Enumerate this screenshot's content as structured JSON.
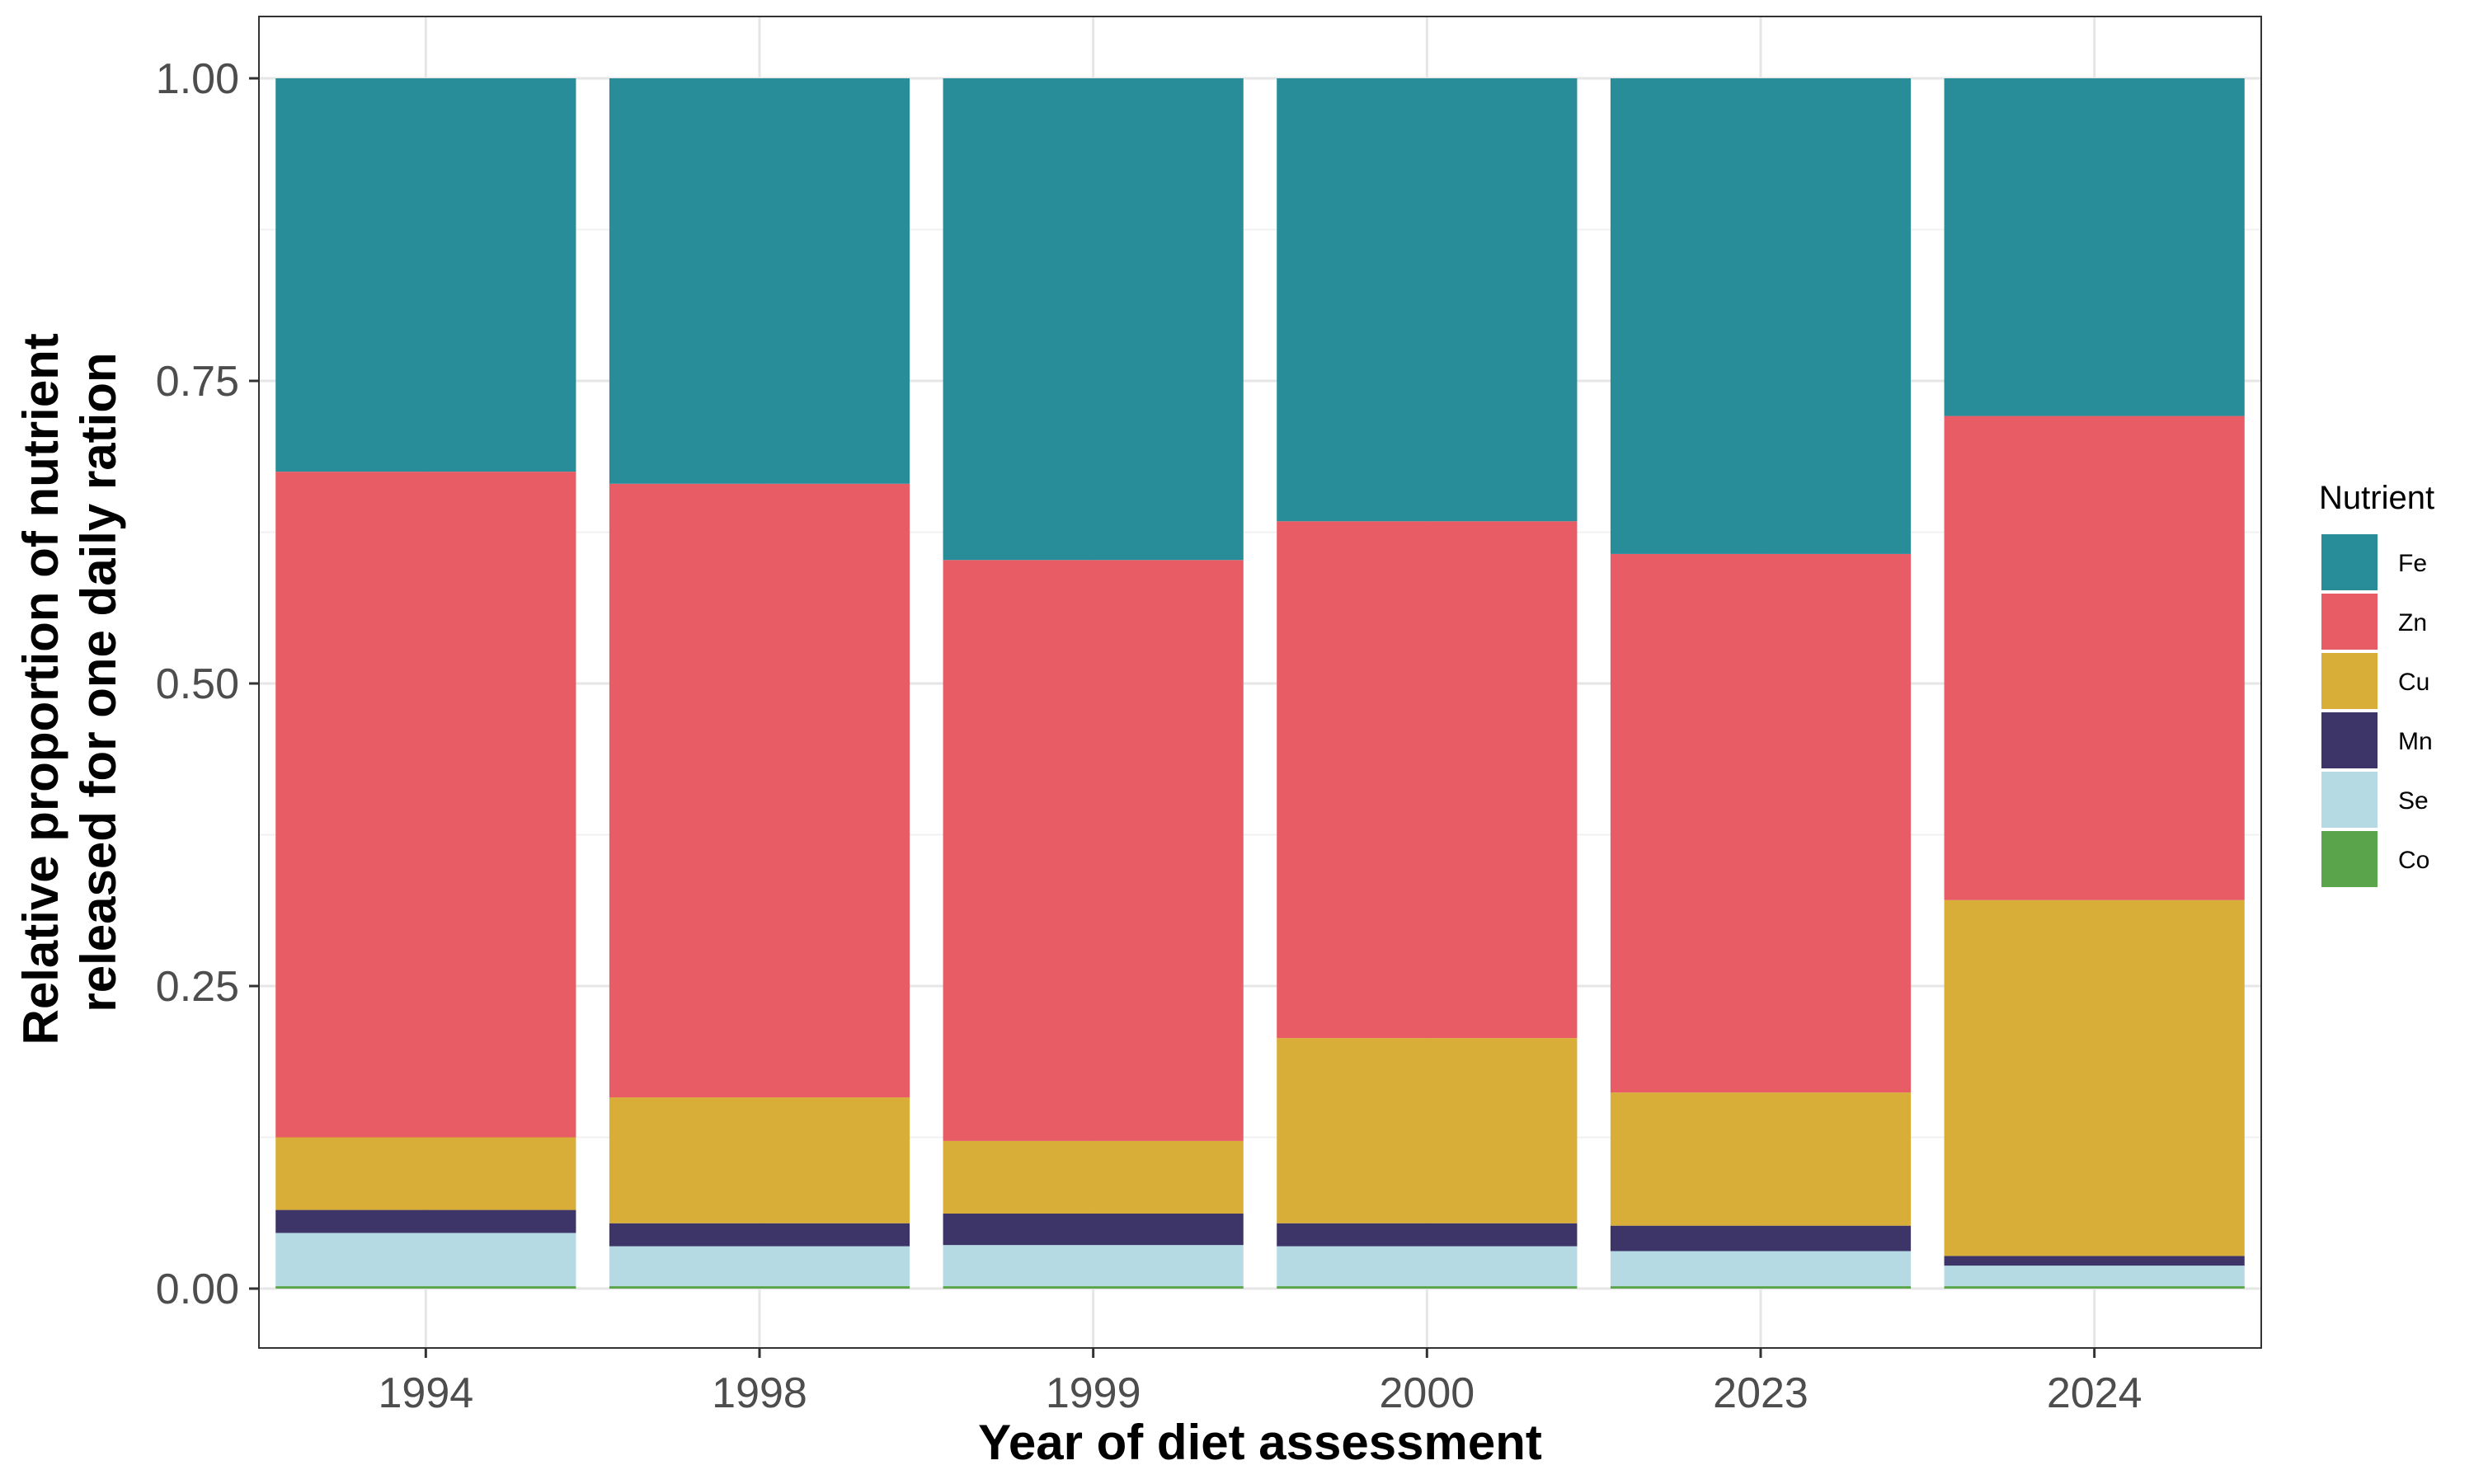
{
  "chart_data": {
    "type": "bar",
    "stacked": true,
    "title": "",
    "xlabel": "Year of diet assessment",
    "ylabel_lines": [
      "Relative proportion of nutrient",
      "released for one daily ration"
    ],
    "ylim": [
      0,
      1
    ],
    "yticks": [
      "0.00",
      "0.25",
      "0.50",
      "0.75",
      "1.00"
    ],
    "ytick_values": [
      0,
      0.25,
      0.5,
      0.75,
      1.0
    ],
    "grid": true,
    "legend_position": "right",
    "legend_title": "Nutrient",
    "categories": [
      "1994",
      "1998",
      "1999",
      "2000",
      "2023",
      "2024"
    ],
    "series": [
      {
        "name": "Co",
        "color": "#5aa54b",
        "values": [
          0.002,
          0.002,
          0.002,
          0.002,
          0.002,
          0.002
        ]
      },
      {
        "name": "Se",
        "color": "#b5dae4",
        "values": [
          0.044,
          0.033,
          0.034,
          0.033,
          0.029,
          0.017
        ]
      },
      {
        "name": "Mn",
        "color": "#3d3468",
        "values": [
          0.019,
          0.019,
          0.026,
          0.019,
          0.021,
          0.008
        ]
      },
      {
        "name": "Cu",
        "color": "#d9ae38",
        "values": [
          0.06,
          0.104,
          0.06,
          0.153,
          0.11,
          0.294
        ]
      },
      {
        "name": "Zn",
        "color": "#e75c65",
        "values": [
          0.55,
          0.507,
          0.48,
          0.427,
          0.445,
          0.4
        ]
      },
      {
        "name": "Fe",
        "color": "#288c99",
        "values": [
          0.325,
          0.335,
          0.398,
          0.366,
          0.393,
          0.279
        ]
      }
    ],
    "legend_order": [
      "Fe",
      "Zn",
      "Cu",
      "Mn",
      "Se",
      "Co"
    ]
  }
}
